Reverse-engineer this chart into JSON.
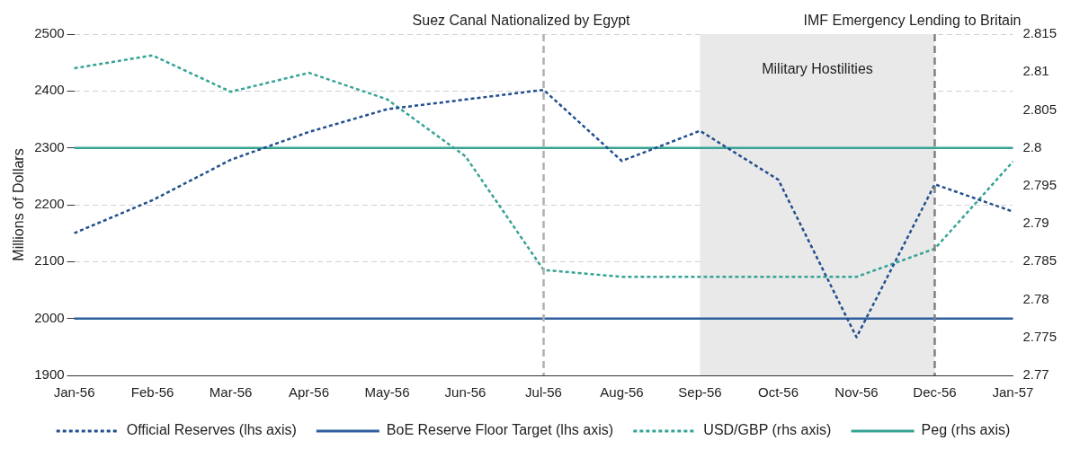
{
  "chart_data": {
    "type": "line",
    "ylabel": "Millions of Dollars",
    "categories": [
      "Jan-56",
      "Feb-56",
      "Mar-56",
      "Apr-56",
      "May-56",
      "Jun-56",
      "Jul-56",
      "Aug-56",
      "Sep-56",
      "Oct-56",
      "Nov-56",
      "Dec-56",
      "Jan-57"
    ],
    "series": [
      {
        "name": "Official Reserves (lhs axis)",
        "color": "#234f8e",
        "line_style": "dotted",
        "values": [
          2150,
          2208,
          2279,
          2328,
          2368,
          2385,
          2402,
          2277,
          2330,
          2244,
          1967,
          2236,
          2188
        ]
      },
      {
        "name": "BoE Reserve Floor Target (lhs axis)",
        "color": "#2f5f9e",
        "line_style": "solid",
        "values": [
          2000,
          2000,
          2000,
          2000,
          2000,
          2000,
          2000,
          2000,
          2000,
          2000,
          2000,
          2000,
          2000
        ]
      },
      {
        "name": "USD/GBP (rhs axis)",
        "color": "#36a394",
        "line_style": "dotted",
        "axis": "y2",
        "values": [
          2.8105,
          2.8122,
          2.8074,
          2.8099,
          2.8064,
          2.7989,
          2.7839,
          2.783,
          2.783,
          2.783,
          2.783,
          2.7867,
          2.7982
        ]
      },
      {
        "name": "Peg (rhs axis)",
        "color": "#36a394",
        "line_style": "solid",
        "axis": "y2",
        "values": [
          2.8,
          2.8,
          2.8,
          2.8,
          2.8,
          2.8,
          2.8,
          2.8,
          2.8,
          2.8,
          2.8,
          2.8,
          2.8
        ]
      }
    ],
    "ylim": [
      1900,
      2500
    ],
    "yticks": [
      1900,
      2000,
      2100,
      2200,
      2300,
      2400,
      2500
    ],
    "y2lim": [
      2.77,
      2.815
    ],
    "y2ticks": [
      2.77,
      2.775,
      2.78,
      2.785,
      2.79,
      2.795,
      2.8,
      2.805,
      2.81,
      2.815
    ],
    "ref_lines": [
      {
        "axis": "x",
        "value": "Jul-56",
        "label": "Suez Canal Nationalized by Egypt",
        "color": "#b0b0b0",
        "line_style": "dashed"
      },
      {
        "axis": "x",
        "value": "Dec-56",
        "label": "IMF Emergency Lending to Britain",
        "color": "#808080",
        "line_style": "dashed"
      }
    ],
    "bands": [
      {
        "axis": "x",
        "from": "Sep-56",
        "to": "Dec-56",
        "label": "Military Hostilities",
        "color": "#e9e9e9"
      }
    ],
    "grid": "y",
    "legend": "bottom",
    "marker": "none"
  }
}
